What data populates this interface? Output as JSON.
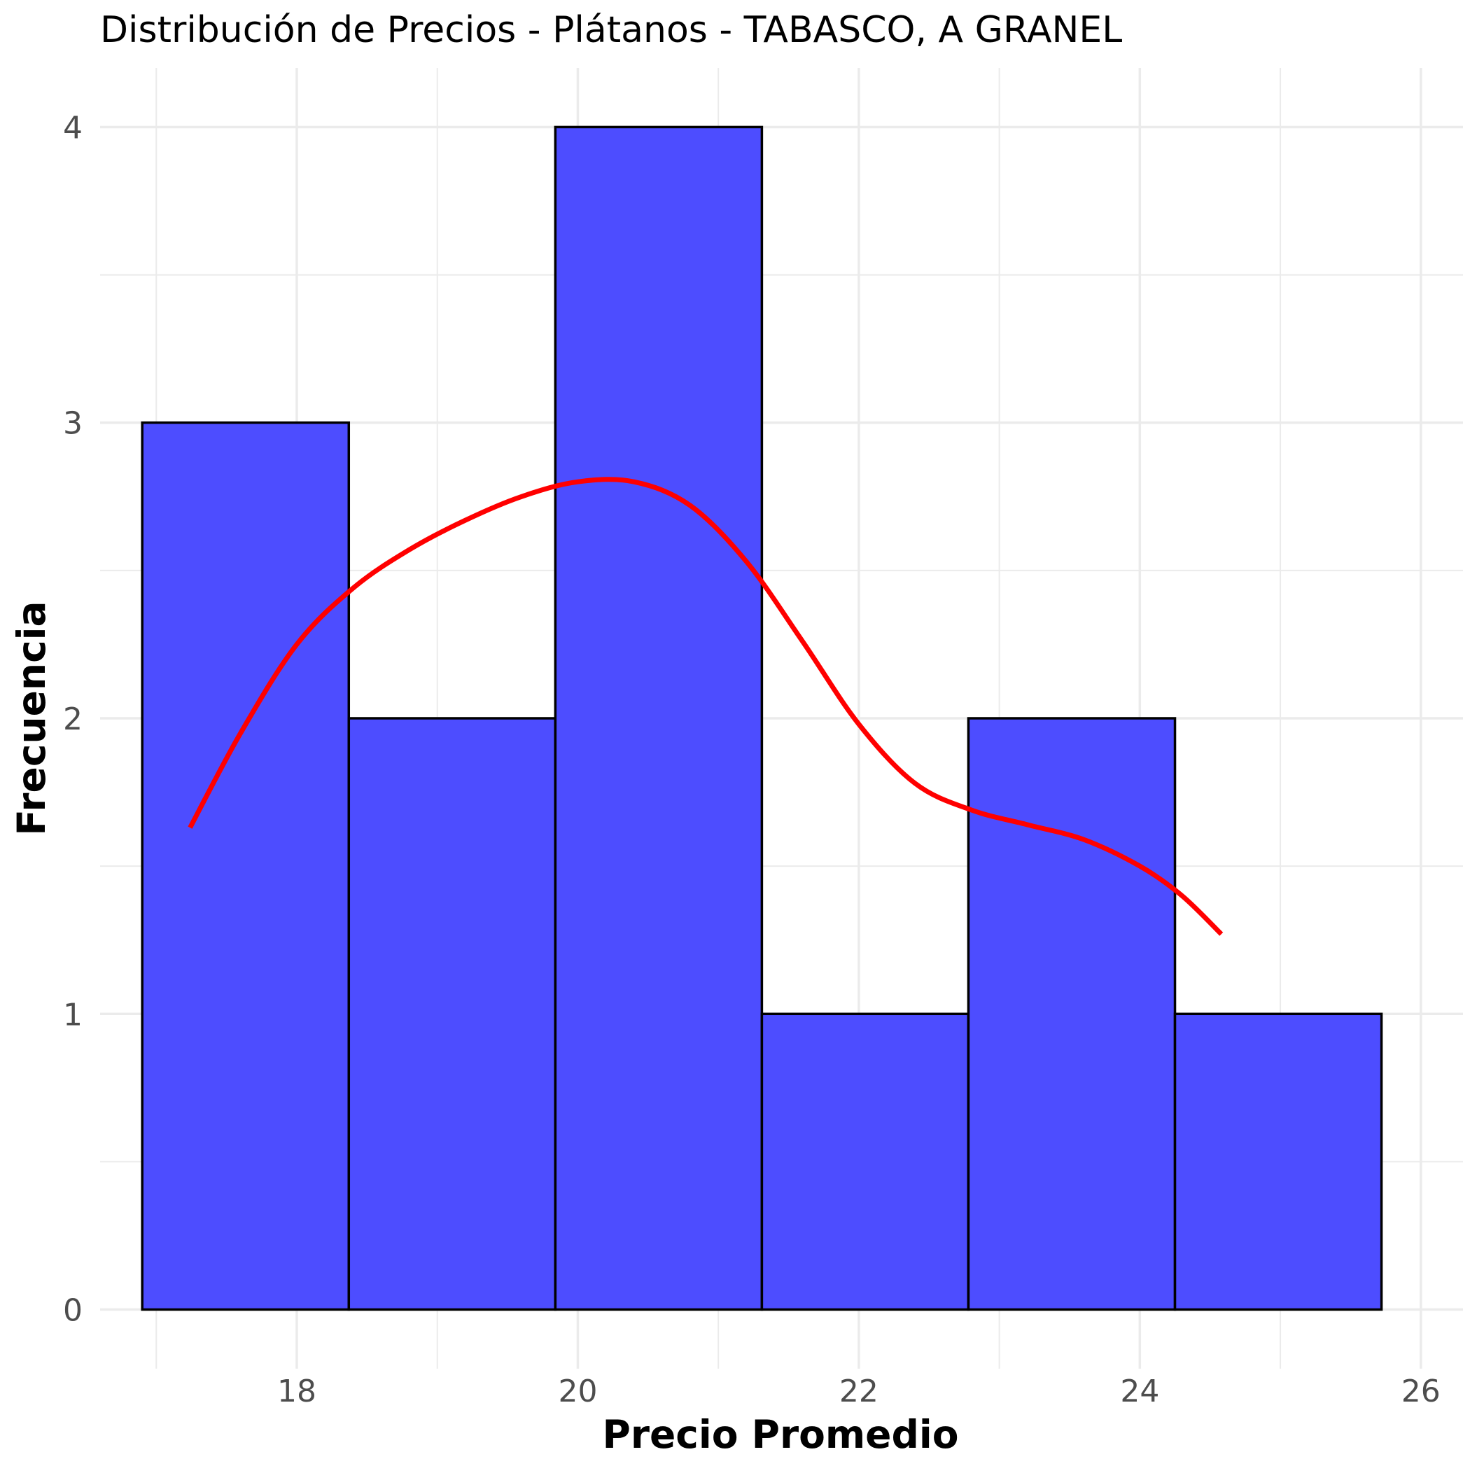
{
  "chart_data": {
    "type": "bar",
    "title": "Distribución de Precios - Plátanos - TABASCO, A GRANEL",
    "xlabel": "Precio Promedio",
    "ylabel": "Frecuencia",
    "bins": [
      {
        "x0": 16.9,
        "x1": 18.37,
        "count": 3
      },
      {
        "x0": 18.37,
        "x1": 19.84,
        "count": 2
      },
      {
        "x0": 19.84,
        "x1": 21.31,
        "count": 4
      },
      {
        "x0": 21.31,
        "x1": 22.78,
        "count": 1
      },
      {
        "x0": 22.78,
        "x1": 24.25,
        "count": 2
      },
      {
        "x0": 24.25,
        "x1": 25.72,
        "count": 1
      }
    ],
    "density_curve": {
      "x": [
        17.24,
        17.6,
        18.0,
        18.4,
        18.8,
        19.2,
        19.6,
        20.0,
        20.4,
        20.8,
        21.2,
        21.6,
        22.0,
        22.4,
        22.8,
        23.2,
        23.6,
        24.0,
        24.3,
        24.58
      ],
      "y": [
        1.63,
        1.95,
        2.25,
        2.44,
        2.57,
        2.67,
        2.75,
        2.8,
        2.8,
        2.72,
        2.53,
        2.26,
        1.98,
        1.78,
        1.69,
        1.64,
        1.59,
        1.5,
        1.4,
        1.27
      ]
    },
    "x_ticks": [
      18,
      20,
      22,
      24,
      26
    ],
    "y_ticks": [
      0,
      1,
      2,
      3,
      4
    ],
    "xlim": [
      16.6,
      26.3
    ],
    "ylim": [
      -0.2,
      4.2
    ],
    "grid": true,
    "colors": {
      "bar_fill": "#4d4dff",
      "bar_stroke": "#000000",
      "curve": "#ff0000",
      "grid": "#ebebeb"
    }
  }
}
